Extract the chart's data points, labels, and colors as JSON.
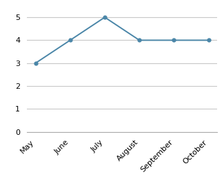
{
  "categories": [
    "May",
    "June",
    "July",
    "August",
    "September",
    "October"
  ],
  "values": [
    3,
    4,
    5,
    4,
    4,
    4
  ],
  "line_color": "#4a86a8",
  "marker": "o",
  "marker_size": 3.5,
  "ylim": [
    0,
    5.5
  ],
  "yticks": [
    0,
    1,
    2,
    3,
    4,
    5
  ],
  "grid_color": "#c8c8c8",
  "grid_linewidth": 0.8,
  "tick_labelsize": 8,
  "background_color": "#ffffff",
  "linewidth": 1.4
}
